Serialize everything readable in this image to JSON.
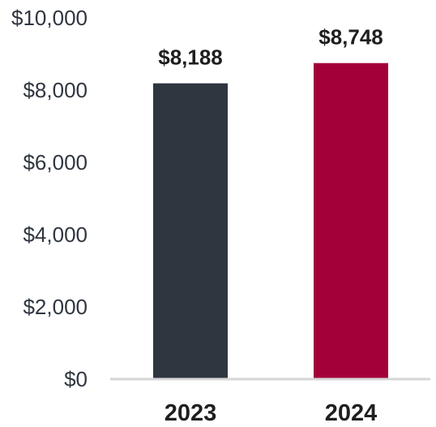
{
  "chart_data": {
    "type": "bar",
    "categories": [
      "2023",
      "2024"
    ],
    "values": [
      8188,
      8748
    ],
    "value_labels": [
      "$8,188",
      "$8,748"
    ],
    "colors": [
      "#2f3640",
      "#a3003a"
    ],
    "ylim": [
      0,
      10000
    ],
    "yticks": [
      0,
      2000,
      4000,
      6000,
      8000,
      10000
    ],
    "ytick_labels": [
      "$0",
      "$2,000",
      "$4,000",
      "$6,000",
      "$8,000",
      "$10,000"
    ],
    "grid": false,
    "title": "",
    "xlabel": "",
    "ylabel": ""
  }
}
